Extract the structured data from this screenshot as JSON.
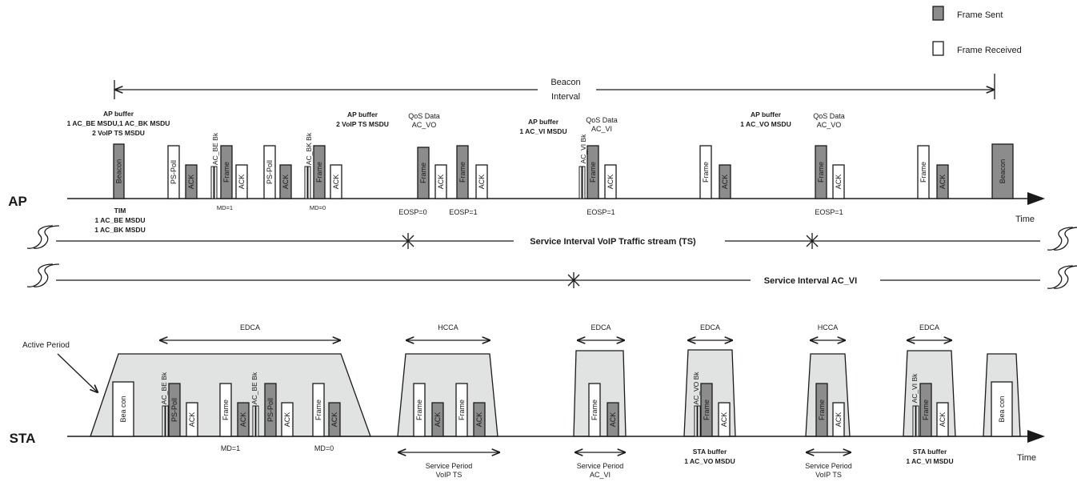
{
  "legend": {
    "sent_label": "Frame Sent",
    "received_label": "Frame Received",
    "sent_color": "#8c8c8c",
    "received_color": "#ffffff",
    "period_fill": "#e1e3e3"
  },
  "beacon_interval": [
    "Beacon",
    "Interval"
  ],
  "ap_label": "AP",
  "sta_label": "STA",
  "time_label": "Time",
  "ap_buffers": [
    [
      "AP buffer",
      "1 AC_BE MSDU,1 AC_BK MSDU",
      "2 VoIP TS MSDU"
    ],
    [
      "AP buffer",
      "2 VoIP TS MSDU"
    ],
    [
      "AP buffer",
      "1 AC_VI MSDU"
    ],
    [
      "AP buffer",
      "1 AC_VO MSDU"
    ]
  ],
  "qos_labels": [
    [
      "QoS Data",
      "AC_VO"
    ],
    [
      "QoS Data",
      "AC_VI"
    ],
    [
      "QoS Data",
      "AC_VO"
    ]
  ],
  "tim": [
    "TIM",
    "1 AC_BE MSDU",
    "1 AC_BK MSDU"
  ],
  "ap_frames": [
    "Beacon",
    "PS-Poll",
    "ACK",
    "AC_BE Bk",
    "Frame",
    "ACK",
    "PS-Poll",
    "ACK",
    "AC_BK Bk",
    "Frame",
    "ACK",
    "Frame",
    "ACK",
    "Frame",
    "ACK",
    "AC_VI Bk",
    "Frame",
    "ACK",
    "Frame",
    "ACK",
    "Frame",
    "ACK",
    "Frame",
    "ACK",
    "Beacon"
  ],
  "ap_marks": [
    "MD=1",
    "MD=0",
    "EOSP=0",
    "EOSP=1",
    "EOSP=1",
    "EOSP=1"
  ],
  "service_intervals": [
    "Service Interval VoIP Traffic stream (TS)",
    "Service Interval AC_VI"
  ],
  "active_period": "Active Period",
  "sta_access": [
    "EDCA",
    "HCCA",
    "EDCA",
    "EDCA",
    "HCCA",
    "EDCA"
  ],
  "sta_frames": [
    "Bea con",
    "AC_BE Bk",
    "PS-Poll",
    "ACK",
    "Frame",
    "ACK",
    "AC_BE Bk",
    "PS-Poll",
    "ACK",
    "Frame",
    "ACK",
    "Frame",
    "ACK",
    "Frame",
    "ACK",
    "Frame",
    "ACK",
    "AC_VO Bk",
    "Frame",
    "ACK",
    "Frame",
    "ACK",
    "AC_VI Bk",
    "Frame",
    "ACK",
    "Bea con"
  ],
  "sta_marks": [
    "MD=1",
    "MD=0"
  ],
  "service_periods": [
    [
      "Service Period",
      "VoIP TS"
    ],
    [
      "Service Period",
      "AC_VI"
    ],
    [
      "Service Period",
      "VoIP TS"
    ]
  ],
  "sta_buffers": [
    [
      "STA buffer",
      "1 AC_VO MSDU"
    ],
    [
      "STA buffer",
      "1 AC_VI MSDU"
    ]
  ]
}
